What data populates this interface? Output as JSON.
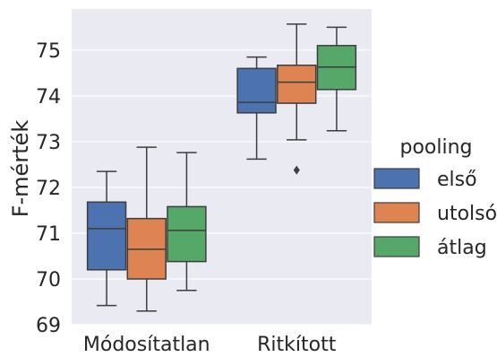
{
  "chart_data": {
    "type": "box",
    "categories": [
      "Módosítatlan",
      "Ritkított"
    ],
    "ylabel": "F-mérték",
    "xlabel": "",
    "ylim": [
      69,
      75.9
    ],
    "yticks": [
      69,
      70,
      71,
      72,
      73,
      74,
      75
    ],
    "grid": true,
    "legend": {
      "title": "pooling",
      "placement": "right",
      "entries": [
        "első",
        "utolsó",
        "átlag"
      ]
    },
    "series": [
      {
        "name": "első",
        "color": "#4c72b0",
        "boxes": [
          {
            "min": 69.42,
            "q1": 70.2,
            "median": 71.1,
            "q3": 71.68,
            "max": 72.35,
            "outliers": []
          },
          {
            "min": 72.62,
            "q1": 73.63,
            "median": 73.86,
            "q3": 74.6,
            "max": 74.85,
            "outliers": []
          }
        ]
      },
      {
        "name": "utolsó",
        "color": "#dd8452",
        "boxes": [
          {
            "min": 69.3,
            "q1": 70.0,
            "median": 70.65,
            "q3": 71.32,
            "max": 72.88,
            "outliers": []
          },
          {
            "min": 73.04,
            "q1": 73.84,
            "median": 74.3,
            "q3": 74.67,
            "max": 75.57,
            "outliers": [
              72.38
            ]
          }
        ]
      },
      {
        "name": "átlag",
        "color": "#55a868",
        "boxes": [
          {
            "min": 69.75,
            "q1": 70.38,
            "median": 71.06,
            "q3": 71.58,
            "max": 72.76,
            "outliers": []
          },
          {
            "min": 73.24,
            "q1": 74.14,
            "median": 74.63,
            "q3": 75.1,
            "max": 75.5,
            "outliers": []
          }
        ]
      }
    ]
  }
}
